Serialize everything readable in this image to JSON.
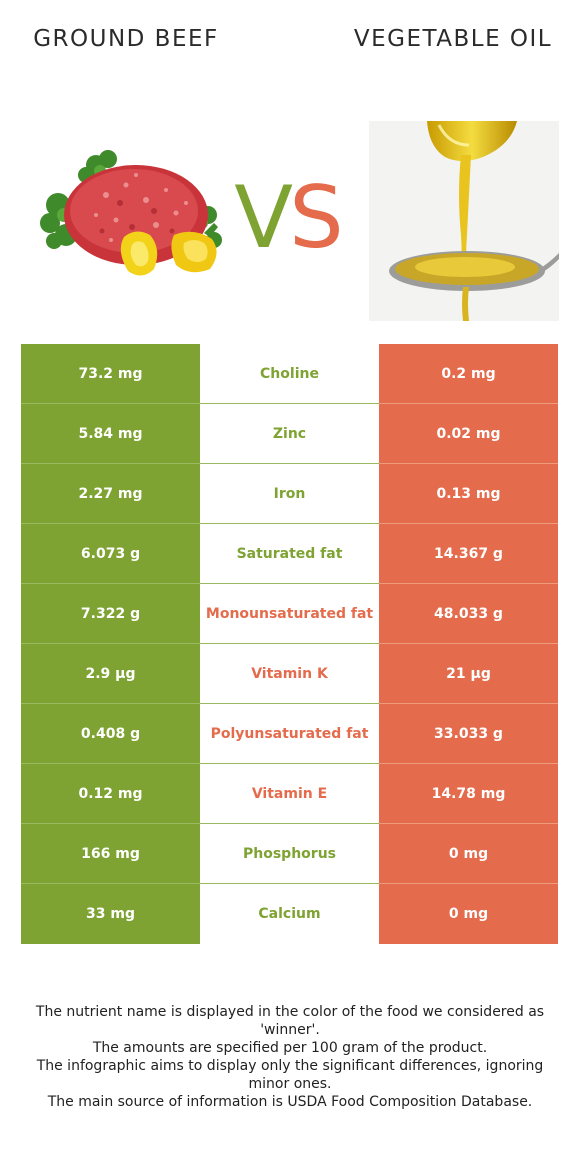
{
  "header": {
    "left_title": "GROUND BEEF",
    "right_title": "VEGETABLE OIL",
    "vs_v": "V",
    "vs_s": "S"
  },
  "colors": {
    "left": "#7ea332",
    "right": "#e46c4c"
  },
  "rows": [
    {
      "nutrient": "Choline",
      "left": "73.2 mg",
      "right": "0.2 mg",
      "winner": "left"
    },
    {
      "nutrient": "Zinc",
      "left": "5.84 mg",
      "right": "0.02 mg",
      "winner": "left"
    },
    {
      "nutrient": "Iron",
      "left": "2.27 mg",
      "right": "0.13 mg",
      "winner": "left"
    },
    {
      "nutrient": "Saturated fat",
      "left": "6.073 g",
      "right": "14.367 g",
      "winner": "left"
    },
    {
      "nutrient": "Monounsaturated fat",
      "left": "7.322 g",
      "right": "48.033 g",
      "winner": "right"
    },
    {
      "nutrient": "Vitamin K",
      "left": "2.9 µg",
      "right": "21 µg",
      "winner": "right"
    },
    {
      "nutrient": "Polyunsaturated fat",
      "left": "0.408 g",
      "right": "33.033 g",
      "winner": "right"
    },
    {
      "nutrient": "Vitamin E",
      "left": "0.12 mg",
      "right": "14.78 mg",
      "winner": "right"
    },
    {
      "nutrient": "Phosphorus",
      "left": "166 mg",
      "right": "0 mg",
      "winner": "left"
    },
    {
      "nutrient": "Calcium",
      "left": "33 mg",
      "right": "0 mg",
      "winner": "left"
    }
  ],
  "footer": {
    "line1": "The nutrient name is displayed in the color of the food we considered as 'winner'.",
    "line2": "The amounts are specified per 100 gram of the product.",
    "line3": "The infographic aims to display only the significant differences, ignoring minor ones.",
    "line4": "The main source of information is USDA Food Composition Database."
  }
}
